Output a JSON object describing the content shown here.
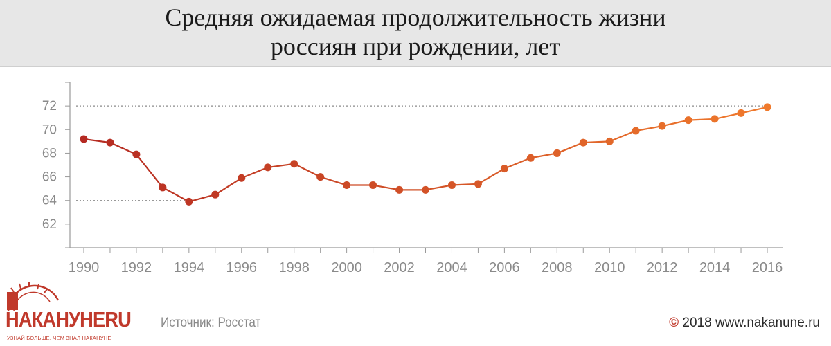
{
  "header": {
    "title_line1": "Средняя ожидаемая продолжительность жизни",
    "title_line2": "россиян при рождении, лет"
  },
  "footer": {
    "source": "Источник: Росстат",
    "copyright_symbol": "©",
    "copyright_text": "2018 www.nakanune.ru"
  },
  "logo": {
    "name": "НАКАНУНЕRU",
    "tagline": "УЗНАЙ БОЛЬШЕ, ЧЕМ ЗНАЛ НАКАНУНЕ",
    "icon": "clock-sun-icon"
  },
  "colors": {
    "brand": "#c0392b",
    "line_start": "#b52a22",
    "line_end": "#f07a2c",
    "header_bg": "#e7e7e7"
  },
  "chart_data": {
    "type": "line",
    "title": "Средняя ожидаемая продолжительность жизни россиян при рождении, лет",
    "xlabel": "",
    "ylabel": "",
    "x": [
      1990,
      1991,
      1992,
      1993,
      1994,
      1995,
      1996,
      1997,
      1998,
      1999,
      2000,
      2001,
      2002,
      2003,
      2004,
      2005,
      2006,
      2007,
      2008,
      2009,
      2010,
      2011,
      2012,
      2013,
      2014,
      2015,
      2016
    ],
    "series": [
      {
        "values": [
          69.2,
          68.9,
          67.9,
          65.1,
          63.9,
          64.5,
          65.9,
          66.8,
          67.1,
          66.0,
          65.3,
          65.3,
          64.9,
          64.9,
          65.3,
          65.4,
          66.7,
          67.6,
          68.0,
          68.9,
          69.0,
          69.9,
          70.3,
          70.8,
          70.9,
          71.4,
          71.9
        ]
      }
    ],
    "x_ticks": [
      "1990",
      "1992",
      "1994",
      "1996",
      "1998",
      "2000",
      "2002",
      "2004",
      "2006",
      "2008",
      "2010",
      "2012",
      "2014",
      "2016"
    ],
    "y_ticks": [
      "62",
      "64",
      "66",
      "68",
      "70",
      "72"
    ],
    "ylim": [
      60,
      74
    ],
    "xlim": [
      1990,
      2016
    ],
    "reference_lines": [
      72,
      64
    ],
    "grid": false
  }
}
